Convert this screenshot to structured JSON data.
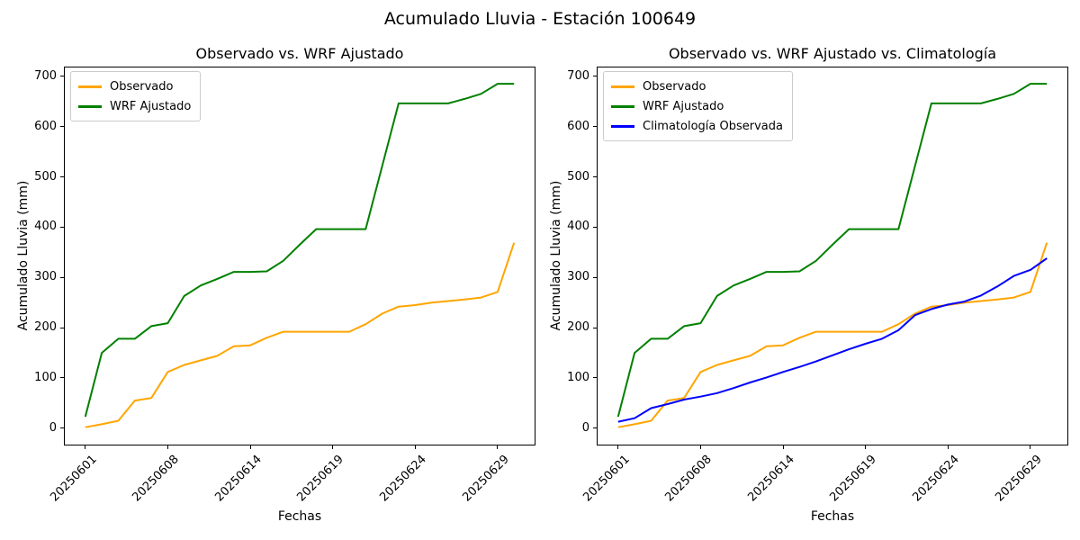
{
  "figure": {
    "title": "Acumulado Lluvia - Estación 100649",
    "background_color": "#ffffff",
    "text_color": "#000000",
    "legend_border_color": "#cccccc"
  },
  "chart_data": [
    {
      "type": "line",
      "title": "Observado vs. WRF Ajustado",
      "xlabel": "Fechas",
      "ylabel": "Acumulado Lluvia (mm)",
      "n_points": 27,
      "x": "day index 0-26 (dates 20250601 to 20250630, ticks every 5th point)",
      "x_tick_positions": [
        0,
        5,
        10,
        15,
        20,
        25
      ],
      "x_tick_labels": [
        "20250601",
        "20250608",
        "20250614",
        "20250619",
        "20250624",
        "20250629"
      ],
      "x_tick_rotation_deg": 45,
      "y_ticks": [
        0,
        100,
        200,
        300,
        400,
        500,
        600,
        700
      ],
      "xlim": [
        -1.3,
        27.3
      ],
      "ylim": [
        -34.25,
        719.25
      ],
      "grid": false,
      "legend_position": "upper-left",
      "series": [
        {
          "name": "Observado",
          "color": "#FFA500",
          "values": [
            2,
            8,
            15,
            55,
            60,
            112,
            126,
            135,
            144,
            163,
            165,
            180,
            192,
            192,
            192,
            192,
            192,
            207,
            228,
            242,
            245,
            250,
            253,
            256,
            260,
            271,
            369
          ]
        },
        {
          "name": "WRF Ajustado",
          "color": "#008000",
          "values": [
            23,
            150,
            178,
            178,
            203,
            209,
            263,
            284,
            297,
            311,
            311,
            312,
            333,
            365,
            396,
            396,
            396,
            396,
            521,
            646,
            646,
            646,
            646,
            655,
            665,
            685,
            685
          ]
        }
      ]
    },
    {
      "type": "line",
      "title": "Observado vs. WRF Ajustado vs. Climatología",
      "xlabel": "Fechas",
      "ylabel": "Acumulado Lluvia (mm)",
      "n_points": 27,
      "x": "day index 0-26 (dates 20250601 to 20250630, ticks every 5th point)",
      "x_tick_positions": [
        0,
        5,
        10,
        15,
        20,
        25
      ],
      "x_tick_labels": [
        "20250601",
        "20250608",
        "20250614",
        "20250619",
        "20250624",
        "20250629"
      ],
      "x_tick_rotation_deg": 45,
      "y_ticks": [
        0,
        100,
        200,
        300,
        400,
        500,
        600,
        700
      ],
      "xlim": [
        -1.3,
        27.3
      ],
      "ylim": [
        -34.25,
        719.25
      ],
      "grid": false,
      "legend_position": "upper-left",
      "series": [
        {
          "name": "Observado",
          "color": "#FFA500",
          "values": [
            2,
            8,
            15,
            55,
            60,
            112,
            126,
            135,
            144,
            163,
            165,
            180,
            192,
            192,
            192,
            192,
            192,
            207,
            228,
            242,
            245,
            250,
            253,
            256,
            260,
            271,
            369
          ]
        },
        {
          "name": "WRF Ajustado",
          "color": "#008000",
          "values": [
            23,
            150,
            178,
            178,
            203,
            209,
            263,
            284,
            297,
            311,
            311,
            312,
            333,
            365,
            396,
            396,
            396,
            396,
            521,
            646,
            646,
            646,
            646,
            655,
            665,
            685,
            685
          ]
        },
        {
          "name": "Climatología Observada",
          "color": "#0000FF",
          "values": [
            13,
            20,
            40,
            48,
            57,
            63,
            70,
            80,
            91,
            101,
            112,
            122,
            133,
            145,
            157,
            168,
            178,
            195,
            225,
            237,
            246,
            252,
            264,
            282,
            303,
            315,
            338
          ]
        }
      ]
    }
  ]
}
